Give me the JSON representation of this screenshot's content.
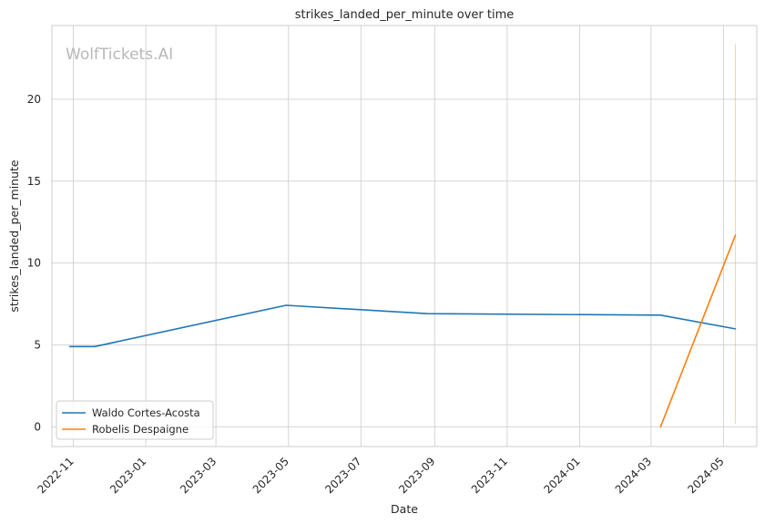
{
  "chart_data": {
    "type": "line",
    "title": "strikes_landed_per_minute over time",
    "xlabel": "Date",
    "ylabel": "strikes_landed_per_minute",
    "watermark": "WolfTickets.AI",
    "x_ticks": [
      "2022-11",
      "2023-01",
      "2023-03",
      "2023-05",
      "2023-07",
      "2023-09",
      "2023-11",
      "2024-01",
      "2024-03",
      "2024-05"
    ],
    "y_ticks": [
      0,
      5,
      10,
      15,
      20
    ],
    "xlim": [
      "2022-10-14",
      "2024-05-29"
    ],
    "ylim": [
      -1.2,
      24.5
    ],
    "grid": true,
    "legend_position": "lower-left",
    "series": [
      {
        "name": "Waldo Cortes-Acosta",
        "color": "#1f77b4",
        "points": [
          {
            "x": "2022-10-29",
            "y": 4.9
          },
          {
            "x": "2022-11-19",
            "y": 4.9
          },
          {
            "x": "2023-04-29",
            "y": 7.42
          },
          {
            "x": "2023-08-26",
            "y": 6.91
          },
          {
            "x": "2024-03-09",
            "y": 6.82
          },
          {
            "x": "2024-05-11",
            "y": 5.98
          }
        ]
      },
      {
        "name": "Robelis Despaigne",
        "color": "#ff7f0e",
        "points": [
          {
            "x": "2024-03-09",
            "y": 0.0
          },
          {
            "x": "2024-05-11",
            "y": 11.7
          }
        ],
        "vertical_marker": {
          "x": "2024-05-11",
          "y_min": 0.2,
          "y_max": 23.4
        }
      }
    ]
  }
}
